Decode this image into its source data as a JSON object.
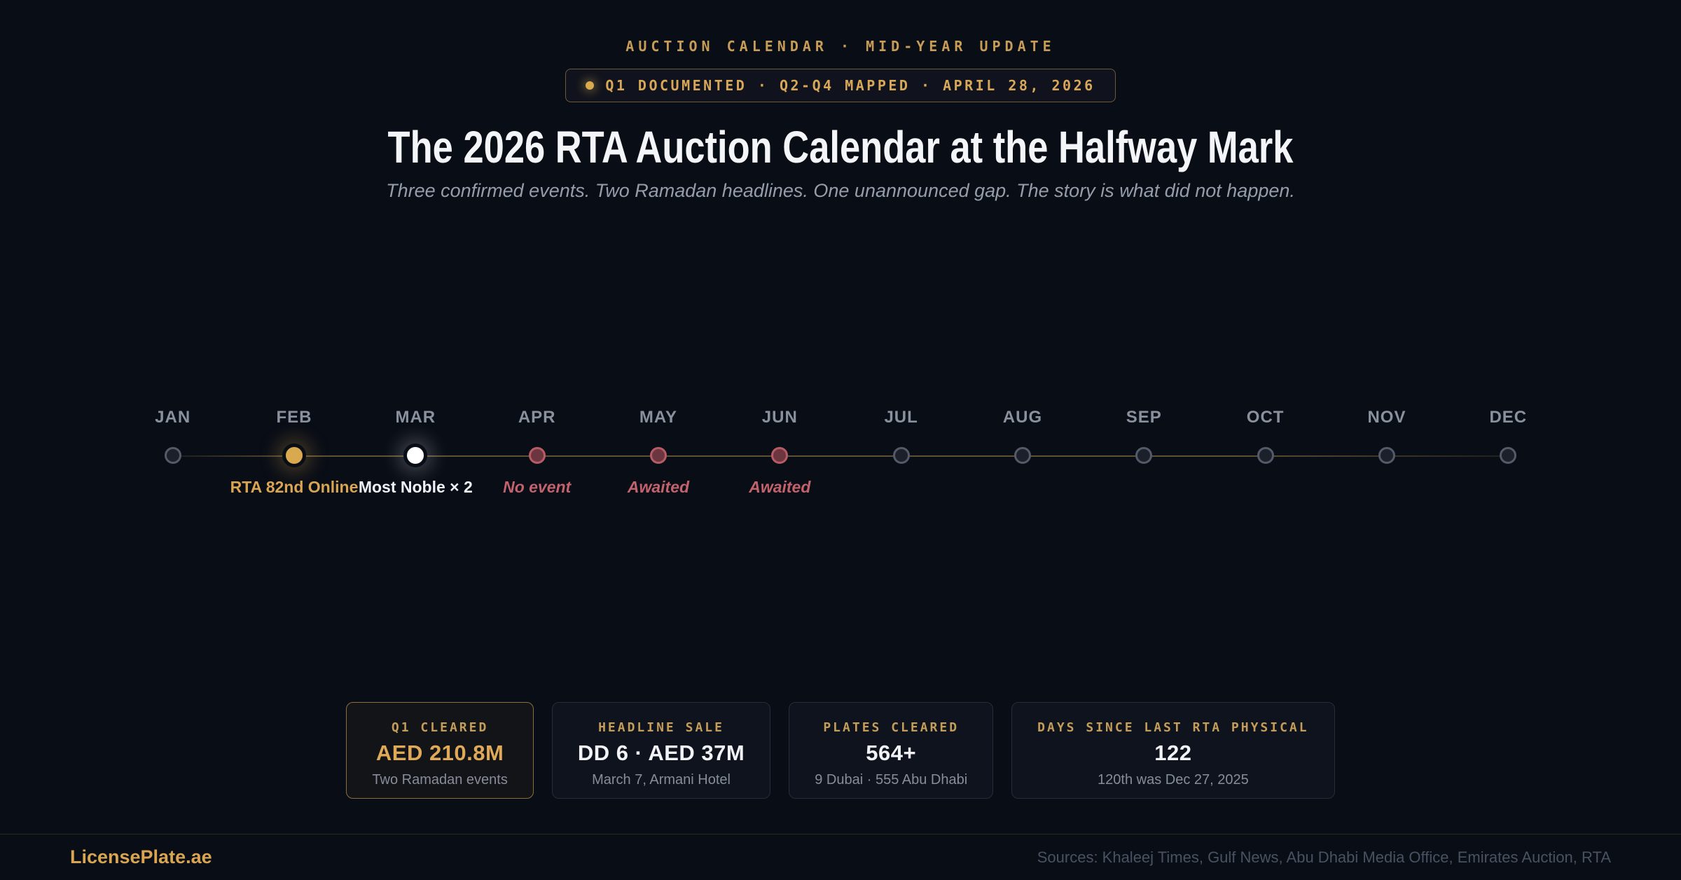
{
  "page": {
    "background": "#090d16",
    "accent_gold": "#d9a552",
    "accent_rose": "#c2626c",
    "accent_white": "#f1f3f6"
  },
  "header": {
    "eyebrow": "AUCTION CALENDAR · MID-YEAR UPDATE",
    "badge": "Q1 DOCUMENTED · Q2-Q4 MAPPED · APRIL 28, 2026",
    "title": "The 2026 RTA Auction Calendar at the Halfway Mark",
    "subtitle": "Three confirmed events. Two Ramadan headlines. One unannounced gap. The story is what did not happen."
  },
  "timeline": {
    "months": [
      {
        "label": "JAN",
        "state": "idle",
        "event": ""
      },
      {
        "label": "FEB",
        "state": "gold",
        "event": "RTA 82nd Online"
      },
      {
        "label": "MAR",
        "state": "white",
        "event": "Most Noble × 2"
      },
      {
        "label": "APR",
        "state": "rose",
        "event": "No event"
      },
      {
        "label": "MAY",
        "state": "rose",
        "event": "Awaited"
      },
      {
        "label": "JUN",
        "state": "rose",
        "event": "Awaited"
      },
      {
        "label": "JUL",
        "state": "idle",
        "event": ""
      },
      {
        "label": "AUG",
        "state": "idle",
        "event": ""
      },
      {
        "label": "SEP",
        "state": "idle",
        "event": ""
      },
      {
        "label": "OCT",
        "state": "idle",
        "event": ""
      },
      {
        "label": "NOV",
        "state": "idle",
        "event": ""
      },
      {
        "label": "DEC",
        "state": "idle",
        "event": ""
      }
    ]
  },
  "chart_data": {
    "type": "timeline",
    "title": "The 2026 RTA Auction Calendar at the Halfway Mark",
    "categories": [
      "JAN",
      "FEB",
      "MAR",
      "APR",
      "MAY",
      "JUN",
      "JUL",
      "AUG",
      "SEP",
      "OCT",
      "NOV",
      "DEC"
    ],
    "events": [
      {
        "month": "FEB",
        "label": "RTA 82nd Online",
        "status": "confirmed",
        "marker_color": "#d9a94f"
      },
      {
        "month": "MAR",
        "label": "Most Noble × 2",
        "status": "confirmed",
        "marker_color": "#ffffff"
      },
      {
        "month": "APR",
        "label": "No event",
        "status": "gap",
        "marker_color": "#b75b66"
      },
      {
        "month": "MAY",
        "label": "Awaited",
        "status": "awaited",
        "marker_color": "#b75b66"
      },
      {
        "month": "JUN",
        "label": "Awaited",
        "status": "awaited",
        "marker_color": "#b75b66"
      }
    ],
    "layout": {
      "axis": "months JAN–DEC, single horizontal line",
      "line_color": "#c9a055",
      "empty_marker_color": "#545a67"
    }
  },
  "stats": [
    {
      "label": "Q1 CLEARED",
      "value": "AED 210.8M",
      "sub": "Two Ramadan events",
      "highlight": true
    },
    {
      "label": "HEADLINE SALE",
      "value": "DD 6 · AED 37M",
      "sub": "March 7, Armani Hotel",
      "highlight": false
    },
    {
      "label": "PLATES CLEARED",
      "value": "564+",
      "sub": "9 Dubai · 555 Abu Dhabi",
      "highlight": false
    },
    {
      "label": "DAYS SINCE LAST RTA PHYSICAL",
      "value": "122",
      "sub": "120th was Dec 27, 2025",
      "highlight": false
    }
  ],
  "footer": {
    "brand": "LicensePlate.ae",
    "sources": "Sources: Khaleej Times, Gulf News, Abu Dhabi Media Office, Emirates Auction, RTA"
  }
}
